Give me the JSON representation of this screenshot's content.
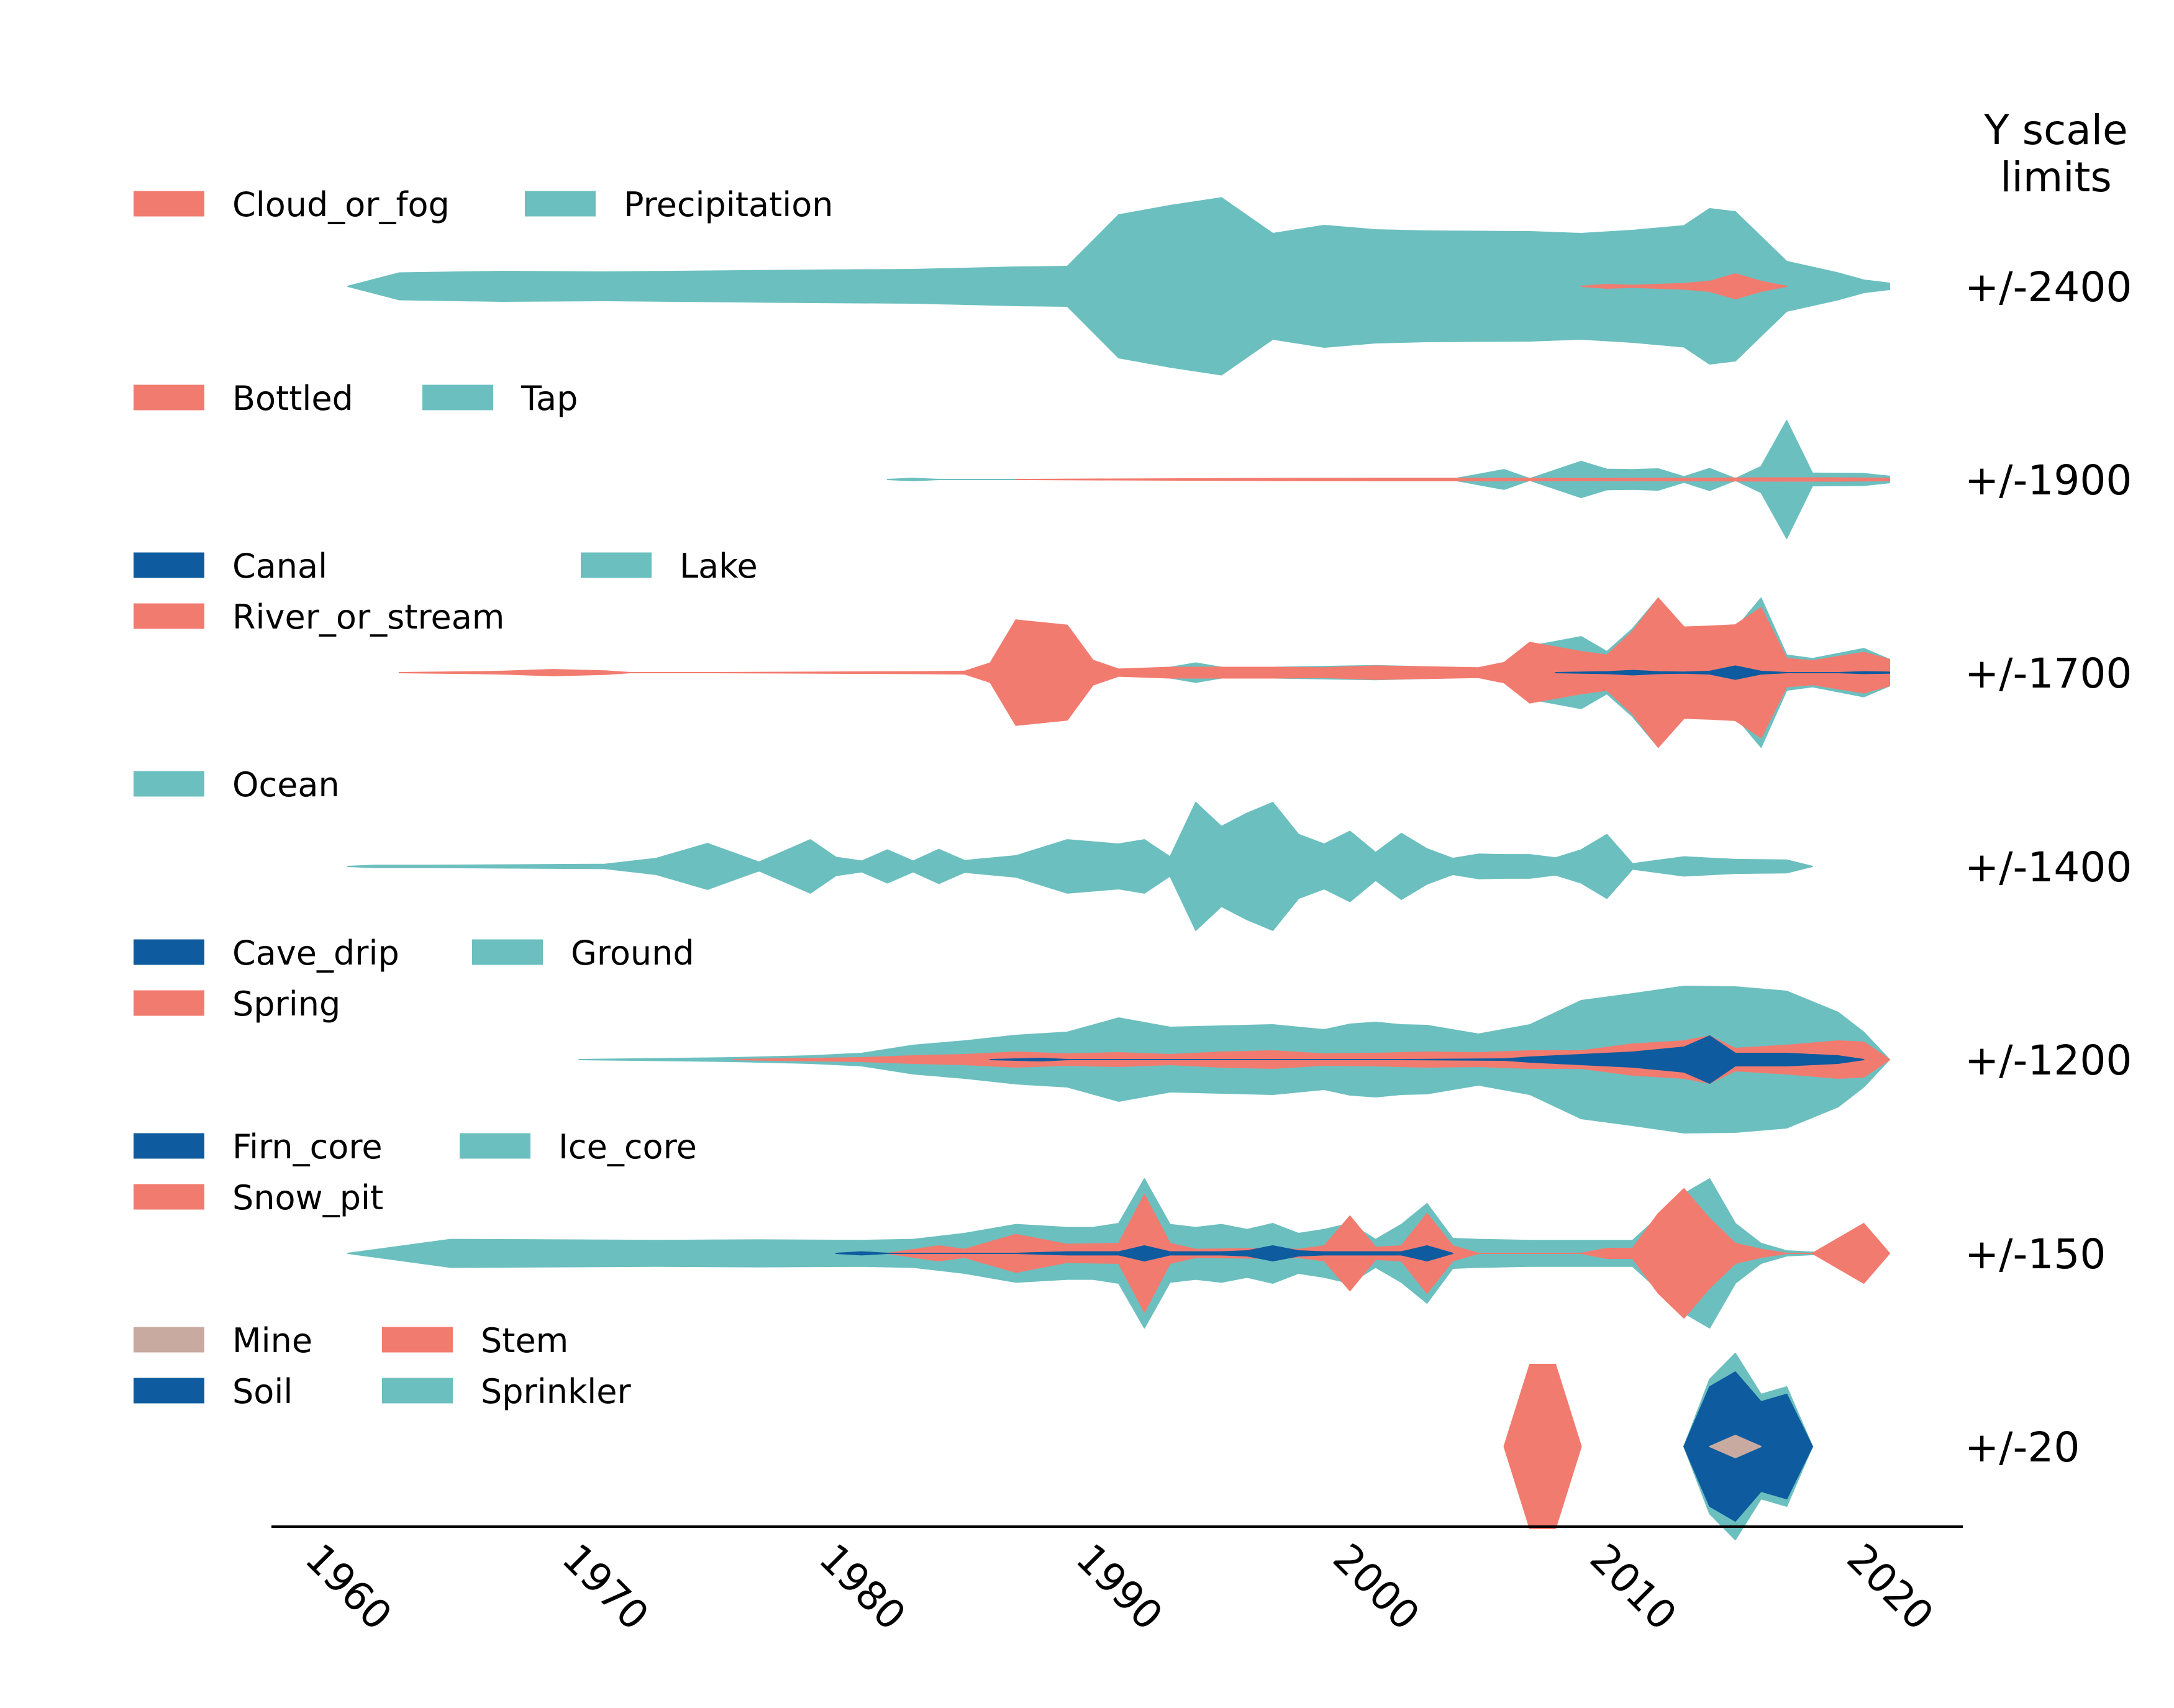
{
  "colors": {
    "teal": "#6cbfbf",
    "salmon": "#f27b6f",
    "blue": "#0e5b9f",
    "tan": "#c9aaa0"
  },
  "chart_data": {
    "type": "area",
    "subtype": "mirrored stream (violin) plot per panel",
    "title": "",
    "xlabel": "",
    "ylabel": "",
    "xlim": [
      1960,
      2020
    ],
    "x_ticks": [
      "1960",
      "1970",
      "1980",
      "1990",
      "2000",
      "2010",
      "2020"
    ],
    "scale_header": "Y scale\nlimits",
    "panels": [
      {
        "id": "p1",
        "scale_label": "+/-2400",
        "scale": 2400,
        "legend_columns": 2,
        "legend": [
          {
            "label": "Cloud_or_fog",
            "color": "salmon"
          },
          {
            "label": "Precipitation",
            "color": "teal"
          }
        ],
        "series": [
          {
            "name": "Precipitation",
            "color": "teal",
            "x": [
              1960,
              1962,
              1966,
              1970,
              1974,
              1978,
              1982,
              1986,
              1988,
              1990,
              1992,
              1994,
              1996,
              1998,
              2000,
              2002,
              2004,
              2006,
              2008,
              2010,
              2012,
              2013,
              2014,
              2016,
              2018,
              2019,
              2020
            ],
            "values": [
              0,
              430,
              480,
              460,
              490,
              520,
              540,
              620,
              640,
              2300,
              2600,
              2850,
              1700,
              1960,
              1820,
              1780,
              1770,
              1760,
              1700,
              1800,
              1950,
              2500,
              2400,
              800,
              430,
              200,
              100
            ]
          },
          {
            "name": "Cloud_or_fog",
            "color": "salmon",
            "x": [
              2008,
              2009,
              2010,
              2011,
              2012,
              2013,
              2014,
              2015,
              2016
            ],
            "values": [
              0,
              60,
              30,
              60,
              90,
              160,
              400,
              160,
              0
            ]
          }
        ]
      },
      {
        "id": "p2",
        "scale_label": "+/-1900",
        "scale": 1900,
        "legend_columns": 2,
        "legend": [
          {
            "label": "Bottled",
            "color": "salmon"
          },
          {
            "label": "Tap",
            "color": "teal"
          }
        ],
        "series": [
          {
            "name": "Tap",
            "color": "teal",
            "x": [
              1981,
              1982,
              1983,
              2002,
              2003,
              2005,
              2006,
              2008,
              2009,
              2010,
              2011,
              2012,
              2013,
              2014,
              2015,
              2016,
              2017,
              2019,
              2020
            ],
            "values": [
              0,
              30,
              0,
              0,
              10,
              250,
              20,
              460,
              260,
              250,
              270,
              70,
              280,
              20,
              330,
              1500,
              160,
              150,
              80
            ]
          },
          {
            "name": "Bottled",
            "color": "salmon",
            "x": [
              1986,
              1994,
              2000,
              2004,
              2008,
              2012,
              2016,
              2018,
              2020
            ],
            "values": [
              0,
              20,
              30,
              30,
              25,
              30,
              40,
              40,
              30
            ]
          }
        ]
      },
      {
        "id": "p3",
        "scale_label": "+/-1700",
        "scale": 1700,
        "legend_columns": 2,
        "legend": [
          {
            "label": "Canal",
            "color": "blue"
          },
          {
            "label": "Lake",
            "color": "teal"
          },
          {
            "label": "River_or_stream",
            "color": "salmon"
          }
        ],
        "series": [
          {
            "name": "Lake",
            "color": "teal",
            "x": [
              1988,
              1990,
              1992,
              1993,
              1994,
              1996,
              1998,
              2000,
              2002,
              2004,
              2005,
              2006,
              2008,
              2009,
              2010,
              2011,
              2012,
              2013,
              2014,
              2015,
              2016,
              2017,
              2019,
              2020
            ],
            "values": [
              0,
              60,
              120,
              220,
              120,
              120,
              140,
              160,
              130,
              100,
              160,
              600,
              820,
              480,
              1000,
              1700,
              540,
              640,
              1000,
              1700,
              400,
              320,
              550,
              300
            ]
          },
          {
            "name": "River_or_stream",
            "color": "salmon",
            "x": [
              1962,
              1965,
              1966,
              1968,
              1970,
              1971,
              1974,
              1982,
              1984,
              1985,
              1986,
              1988,
              1989,
              1990,
              1992,
              1994,
              1996,
              1998,
              2000,
              2002,
              2004,
              2005,
              2006,
              2008,
              2009,
              2010,
              2011,
              2012,
              2013,
              2014,
              2015,
              2016,
              2017,
              2019,
              2020
            ],
            "values": [
              0,
              20,
              30,
              70,
              40,
              0,
              0,
              20,
              30,
              220,
              1200,
              1080,
              280,
              80,
              120,
              120,
              120,
              110,
              150,
              130,
              110,
              230,
              690,
              480,
              400,
              940,
              1700,
              1040,
              1060,
              1090,
              1480,
              320,
              270,
              460,
              300
            ]
          },
          {
            "name": "Canal",
            "color": "blue",
            "x": [
              2007,
              2008,
              2009,
              2010,
              2011,
              2012,
              2013,
              2014,
              2015,
              2016,
              2018,
              2019,
              2020
            ],
            "values": [
              0,
              10,
              20,
              50,
              20,
              10,
              30,
              150,
              30,
              0,
              0,
              20,
              10
            ]
          }
        ]
      },
      {
        "id": "p4",
        "scale_label": "+/-1400",
        "scale": 1400,
        "legend_columns": 1,
        "legend": [
          {
            "label": "Ocean",
            "color": "teal"
          }
        ],
        "series": [
          {
            "name": "Ocean",
            "color": "teal",
            "x": [
              1960,
              1961,
              1963,
              1970,
              1972,
              1974,
              1976,
              1978,
              1979,
              1980,
              1981,
              1982,
              1983,
              1984,
              1986,
              1988,
              1990,
              1991,
              1992,
              1993,
              1994,
              1995,
              1996,
              1997,
              1998,
              1999,
              2000,
              2001,
              2002,
              2003,
              2004,
              2005,
              2006,
              2007,
              2008,
              2009,
              2010,
              2012,
              2014,
              2016,
              2017
            ],
            "values": [
              0,
              20,
              20,
              40,
              150,
              430,
              80,
              500,
              170,
              100,
              310,
              100,
              320,
              110,
              200,
              500,
              420,
              500,
              180,
              1200,
              750,
              1000,
              1200,
              600,
              420,
              660,
              260,
              620,
              330,
              150,
              230,
              220,
              220,
              160,
              310,
              600,
              50,
              180,
              130,
              120,
              0
            ]
          }
        ]
      },
      {
        "id": "p5",
        "scale_label": "+/-1200",
        "scale": 1200,
        "legend_columns": 2,
        "legend": [
          {
            "label": "Cave_drip",
            "color": "blue"
          },
          {
            "label": "Ground",
            "color": "teal"
          },
          {
            "label": "Spring",
            "color": "salmon"
          }
        ],
        "series": [
          {
            "name": "Ground",
            "color": "teal",
            "x": [
              1969,
              1975,
              1978,
              1980,
              1982,
              1984,
              1986,
              1988,
              1990,
              1992,
              1994,
              1996,
              1998,
              1999,
              2000,
              2001,
              2002,
              2004,
              2006,
              2008,
              2010,
              2012,
              2014,
              2016,
              2018,
              2019,
              2020
            ],
            "values": [
              0,
              30,
              60,
              100,
              230,
              300,
              390,
              440,
              670,
              520,
              540,
              560,
              480,
              570,
              600,
              560,
              550,
              410,
              560,
              950,
              1060,
              1180,
              1170,
              1100,
              760,
              440,
              0
            ]
          },
          {
            "name": "Spring",
            "color": "salmon",
            "x": [
              1975,
              1980,
              1982,
              1984,
              1986,
              1988,
              1990,
              1992,
              1994,
              1996,
              1998,
              2000,
              2002,
              2004,
              2006,
              2008,
              2010,
              2012,
              2013,
              2014,
              2016,
              2018,
              2019,
              2020
            ],
            "values": [
              0,
              30,
              60,
              80,
              120,
              90,
              110,
              80,
              120,
              140,
              90,
              100,
              120,
              110,
              140,
              140,
              250,
              300,
              380,
              180,
              230,
              300,
              280,
              0
            ]
          },
          {
            "name": "Cave_drip",
            "color": "blue",
            "x": [
              1985,
              1987,
              1988,
              2001,
              2005,
              2006,
              2008,
              2010,
              2012,
              2013,
              2014,
              2016,
              2018,
              2019
            ],
            "values": [
              0,
              20,
              0,
              0,
              10,
              40,
              80,
              120,
              200,
              380,
              100,
              100,
              60,
              0
            ]
          }
        ]
      },
      {
        "id": "p6",
        "scale_label": "+/-150",
        "scale": 150,
        "legend_columns": 2,
        "legend": [
          {
            "label": "Firn_core",
            "color": "blue"
          },
          {
            "label": "Ice_core",
            "color": "teal"
          },
          {
            "label": "Snow_pit",
            "color": "salmon"
          }
        ],
        "series": [
          {
            "name": "Ice_core",
            "color": "teal",
            "x": [
              1960,
              1964,
              1968,
              1972,
              1976,
              1980,
              1982,
              1984,
              1986,
              1988,
              1989,
              1990,
              1991,
              1992,
              1993,
              1994,
              1995,
              1996,
              1997,
              1998,
              1999,
              2000,
              2001,
              2002,
              2003,
              2004,
              2006,
              2008,
              2010,
              2012,
              2013,
              2014,
              2015,
              2016,
              2018
            ],
            "values": [
              0,
              28,
              27,
              26,
              27,
              26,
              28,
              40,
              58,
              52,
              52,
              60,
              150,
              58,
              52,
              58,
              48,
              60,
              40,
              48,
              60,
              28,
              58,
              100,
              30,
              28,
              26,
              26,
              26,
              120,
              150,
              60,
              20,
              5,
              0
            ]
          },
          {
            "name": "Snow_pit",
            "color": "salmon",
            "x": [
              1981,
              1983,
              1984,
              1986,
              1988,
              1990,
              1991,
              1992,
              1993,
              1996,
              1997,
              1998,
              1999,
              2000,
              2001,
              2002,
              2003,
              2004,
              2008,
              2009,
              2010,
              2011,
              2012,
              2013,
              2014,
              2015,
              2016,
              2017,
              2019,
              2020
            ],
            "values": [
              0,
              15,
              8,
              38,
              18,
              20,
              118,
              20,
              8,
              10,
              8,
              15,
              75,
              12,
              15,
              80,
              15,
              0,
              0,
              10,
              10,
              80,
              130,
              70,
              20,
              8,
              0,
              0,
              60,
              0
            ]
          },
          {
            "name": "Firn_core",
            "color": "blue",
            "x": [
              1979,
              1980,
              1981,
              1986,
              1988,
              1990,
              1991,
              1992,
              1994,
              1995,
              1996,
              1997,
              1998,
              2001,
              2002,
              2003
            ],
            "values": [
              0,
              3,
              0,
              0,
              3,
              3,
              15,
              3,
              3,
              5,
              15,
              5,
              3,
              3,
              15,
              0
            ]
          }
        ]
      },
      {
        "id": "p7",
        "scale_label": "+/-20",
        "scale": 20,
        "legend_columns": 2,
        "legend": [
          {
            "label": "Mine",
            "color": "tan"
          },
          {
            "label": "Stem",
            "color": "salmon"
          },
          {
            "label": "Soil",
            "color": "blue"
          },
          {
            "label": "Sprinkler",
            "color": "teal"
          }
        ],
        "series": [
          {
            "name": "Sprinkler",
            "color": "teal",
            "x": [
              2012,
              2013,
              2014,
              2015,
              2016,
              2017
            ],
            "values": [
              0,
              18,
              25,
              14,
              16,
              0
            ]
          },
          {
            "name": "Stem",
            "color": "salmon",
            "x": [
              2005,
              2006,
              2007,
              2008
            ],
            "values": [
              0,
              22,
              22,
              0
            ]
          },
          {
            "name": "Soil",
            "color": "blue",
            "x": [
              2012,
              2013,
              2014,
              2015,
              2016,
              2017
            ],
            "values": [
              0,
              16,
              20,
              12,
              14,
              0
            ]
          },
          {
            "name": "Mine",
            "color": "tan",
            "x": [
              2013,
              2014,
              2015
            ],
            "values": [
              0,
              3,
              0
            ]
          }
        ]
      }
    ]
  }
}
